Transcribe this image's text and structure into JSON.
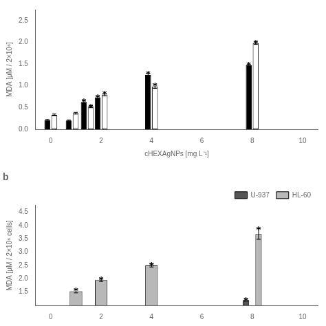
{
  "chart_data": [
    {
      "type": "bar",
      "x_label": "cHEXAgNPs [mg L⁻¹]",
      "y_label": "MDA [μM / 2×10⁶]",
      "x": [
        0.0,
        0.85,
        1.45,
        2.0,
        4.0,
        8.0
      ],
      "series": [
        {
          "color": "black",
          "values": [
            0.21,
            0.2,
            0.63,
            0.73,
            1.25,
            1.47
          ],
          "errors": [
            0.015,
            0.015,
            0.03,
            0.03,
            0.04,
            0.025
          ],
          "annotations": [
            null,
            null,
            "*",
            "*",
            "*",
            "*"
          ]
        },
        {
          "color": "white",
          "values": [
            0.33,
            0.37,
            0.52,
            0.8,
            0.98,
            1.98
          ],
          "errors": [
            0.02,
            0.02,
            0.025,
            0.03,
            0.04,
            0.03
          ],
          "annotations": [
            null,
            null,
            "*",
            "*",
            "*",
            "*"
          ]
        }
      ],
      "xlim": [
        -0.6,
        10.6
      ],
      "xticks": [
        0,
        2,
        4,
        6,
        8,
        10
      ],
      "ylim": [
        0,
        2.75
      ],
      "yticks": [
        {
          "value": 0.0,
          "label": "0.0"
        },
        0.5,
        {
          "value": 1.0,
          "label": "1.0"
        },
        1.5,
        {
          "value": 2.0,
          "label": "2.0"
        },
        2.5
      ],
      "grid": false
    },
    {
      "type": "bar",
      "title": "b",
      "y_label": "MDA [μM / 2×10⁶ cells]",
      "x": [
        1.0,
        2.0,
        4.0,
        8.0
      ],
      "series": [
        {
          "name": "U-937",
          "color": "#555555",
          "values": [
            null,
            null,
            null,
            1.2
          ],
          "errors": [
            null,
            null,
            null,
            0.04
          ],
          "annotations": [
            null,
            null,
            null,
            "*"
          ]
        },
        {
          "name": "HL-60",
          "color": "#b8b8b8",
          "values": [
            1.53,
            1.95,
            2.5,
            3.68
          ],
          "errors": [
            0.06,
            0.05,
            0.06,
            0.2
          ],
          "annotations": [
            "*",
            "*",
            "*",
            "*"
          ]
        }
      ],
      "xlim": [
        -0.6,
        10.6
      ],
      "xticks": [
        0,
        2,
        4,
        6,
        8,
        10
      ],
      "ylim": [
        1.0,
        4.75
      ],
      "yticks": [
        1.5,
        {
          "value": 2.0,
          "label": "2.0"
        },
        2.5,
        {
          "value": 3.0,
          "label": "3.0"
        },
        3.5,
        {
          "value": 4.0,
          "label": "4.0"
        },
        4.5
      ],
      "legend": "upper right",
      "grid": false
    }
  ]
}
